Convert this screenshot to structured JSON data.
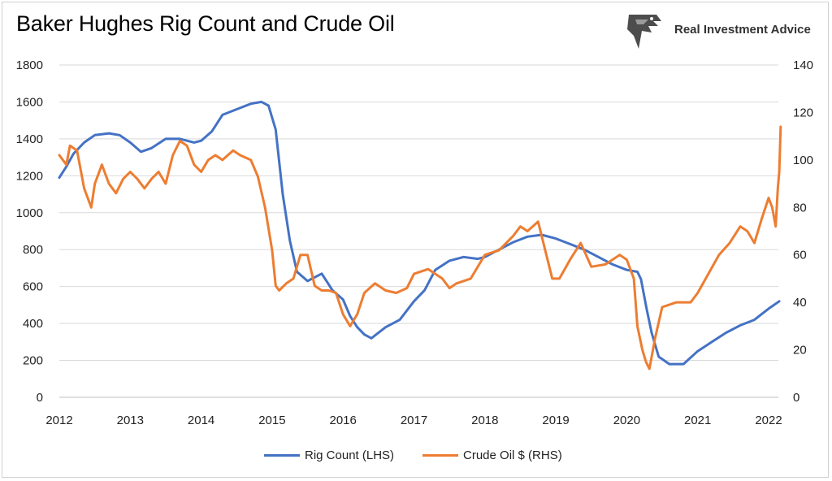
{
  "title": "Baker Hughes Rig Count and Crude Oil",
  "brand": {
    "name": "Real Investment Advice",
    "logo_icon": "eagle-head-icon"
  },
  "colors": {
    "rig": "#4472C4",
    "oil": "#ED7D31",
    "grid": "#d9d9d9"
  },
  "chart_data": {
    "type": "line",
    "xlabel": "",
    "ylabel_left": "",
    "ylabel_right": "",
    "x_ticks": [
      "2012",
      "2013",
      "2014",
      "2015",
      "2016",
      "2017",
      "2018",
      "2019",
      "2020",
      "2021",
      "2022"
    ],
    "x_range": [
      2012.0,
      2022.2
    ],
    "y_left_ticks": [
      "0",
      "200",
      "400",
      "600",
      "800",
      "1000",
      "1200",
      "1400",
      "1600",
      "1800"
    ],
    "y_left_range": [
      0,
      1800
    ],
    "y_right_ticks": [
      "0",
      "20",
      "40",
      "60",
      "80",
      "100",
      "120",
      "140"
    ],
    "y_right_range": [
      0,
      140
    ],
    "grid": "horizontal",
    "legend_position": "bottom",
    "series": [
      {
        "name": "Rig Count (LHS)",
        "axis": "left",
        "x": [
          2012.0,
          2012.1,
          2012.2,
          2012.35,
          2012.5,
          2012.7,
          2012.85,
          2013.0,
          2013.15,
          2013.3,
          2013.5,
          2013.7,
          2013.9,
          2014.0,
          2014.15,
          2014.3,
          2014.5,
          2014.7,
          2014.85,
          2014.95,
          2015.05,
          2015.15,
          2015.25,
          2015.35,
          2015.5,
          2015.7,
          2015.85,
          2016.0,
          2016.1,
          2016.2,
          2016.3,
          2016.4,
          2016.6,
          2016.8,
          2017.0,
          2017.15,
          2017.3,
          2017.5,
          2017.7,
          2017.9,
          2018.0,
          2018.2,
          2018.4,
          2018.6,
          2018.8,
          2019.0,
          2019.2,
          2019.4,
          2019.6,
          2019.8,
          2020.0,
          2020.15,
          2020.2,
          2020.28,
          2020.35,
          2020.45,
          2020.6,
          2020.8,
          2021.0,
          2021.2,
          2021.4,
          2021.6,
          2021.8,
          2022.0,
          2022.15
        ],
        "values": [
          1190,
          1250,
          1320,
          1380,
          1420,
          1430,
          1420,
          1380,
          1330,
          1350,
          1400,
          1400,
          1380,
          1390,
          1440,
          1530,
          1560,
          1590,
          1600,
          1580,
          1450,
          1100,
          850,
          680,
          630,
          670,
          580,
          530,
          440,
          380,
          340,
          320,
          380,
          420,
          520,
          580,
          690,
          740,
          760,
          750,
          760,
          800,
          840,
          870,
          880,
          860,
          830,
          800,
          760,
          720,
          690,
          680,
          640,
          480,
          350,
          220,
          180,
          180,
          250,
          300,
          350,
          390,
          420,
          480,
          520
        ]
      },
      {
        "name": "Crude Oil $ (RHS)",
        "axis": "right",
        "x": [
          2012.0,
          2012.1,
          2012.15,
          2012.25,
          2012.35,
          2012.45,
          2012.5,
          2012.6,
          2012.7,
          2012.8,
          2012.9,
          2013.0,
          2013.1,
          2013.2,
          2013.3,
          2013.4,
          2013.5,
          2013.6,
          2013.7,
          2013.8,
          2013.9,
          2014.0,
          2014.1,
          2014.2,
          2014.3,
          2014.45,
          2014.55,
          2014.7,
          2014.8,
          2014.9,
          2015.0,
          2015.05,
          2015.1,
          2015.2,
          2015.3,
          2015.4,
          2015.5,
          2015.6,
          2015.7,
          2015.8,
          2015.9,
          2016.0,
          2016.1,
          2016.2,
          2016.3,
          2016.45,
          2016.6,
          2016.75,
          2016.9,
          2017.0,
          2017.2,
          2017.4,
          2017.5,
          2017.6,
          2017.8,
          2018.0,
          2018.2,
          2018.4,
          2018.5,
          2018.6,
          2018.75,
          2018.85,
          2018.95,
          2019.05,
          2019.2,
          2019.35,
          2019.5,
          2019.7,
          2019.9,
          2020.0,
          2020.1,
          2020.15,
          2020.22,
          2020.27,
          2020.32,
          2020.4,
          2020.5,
          2020.7,
          2020.9,
          2021.0,
          2021.15,
          2021.3,
          2021.45,
          2021.6,
          2021.7,
          2021.8,
          2021.9,
          2022.0,
          2022.05,
          2022.1,
          2022.13,
          2022.15,
          2022.17
        ],
        "values": [
          102,
          98,
          106,
          104,
          88,
          80,
          90,
          98,
          90,
          86,
          92,
          95,
          92,
          88,
          92,
          95,
          90,
          102,
          108,
          106,
          98,
          95,
          100,
          102,
          100,
          104,
          102,
          100,
          93,
          80,
          62,
          47,
          45,
          48,
          50,
          60,
          60,
          47,
          45,
          45,
          44,
          35,
          30,
          35,
          44,
          48,
          45,
          44,
          46,
          52,
          54,
          50,
          46,
          48,
          50,
          60,
          62,
          68,
          72,
          70,
          74,
          62,
          50,
          50,
          58,
          65,
          55,
          56,
          60,
          58,
          50,
          30,
          20,
          15,
          12,
          25,
          38,
          40,
          40,
          44,
          52,
          60,
          65,
          72,
          70,
          65,
          75,
          84,
          80,
          72,
          88,
          95,
          114
        ]
      }
    ]
  }
}
